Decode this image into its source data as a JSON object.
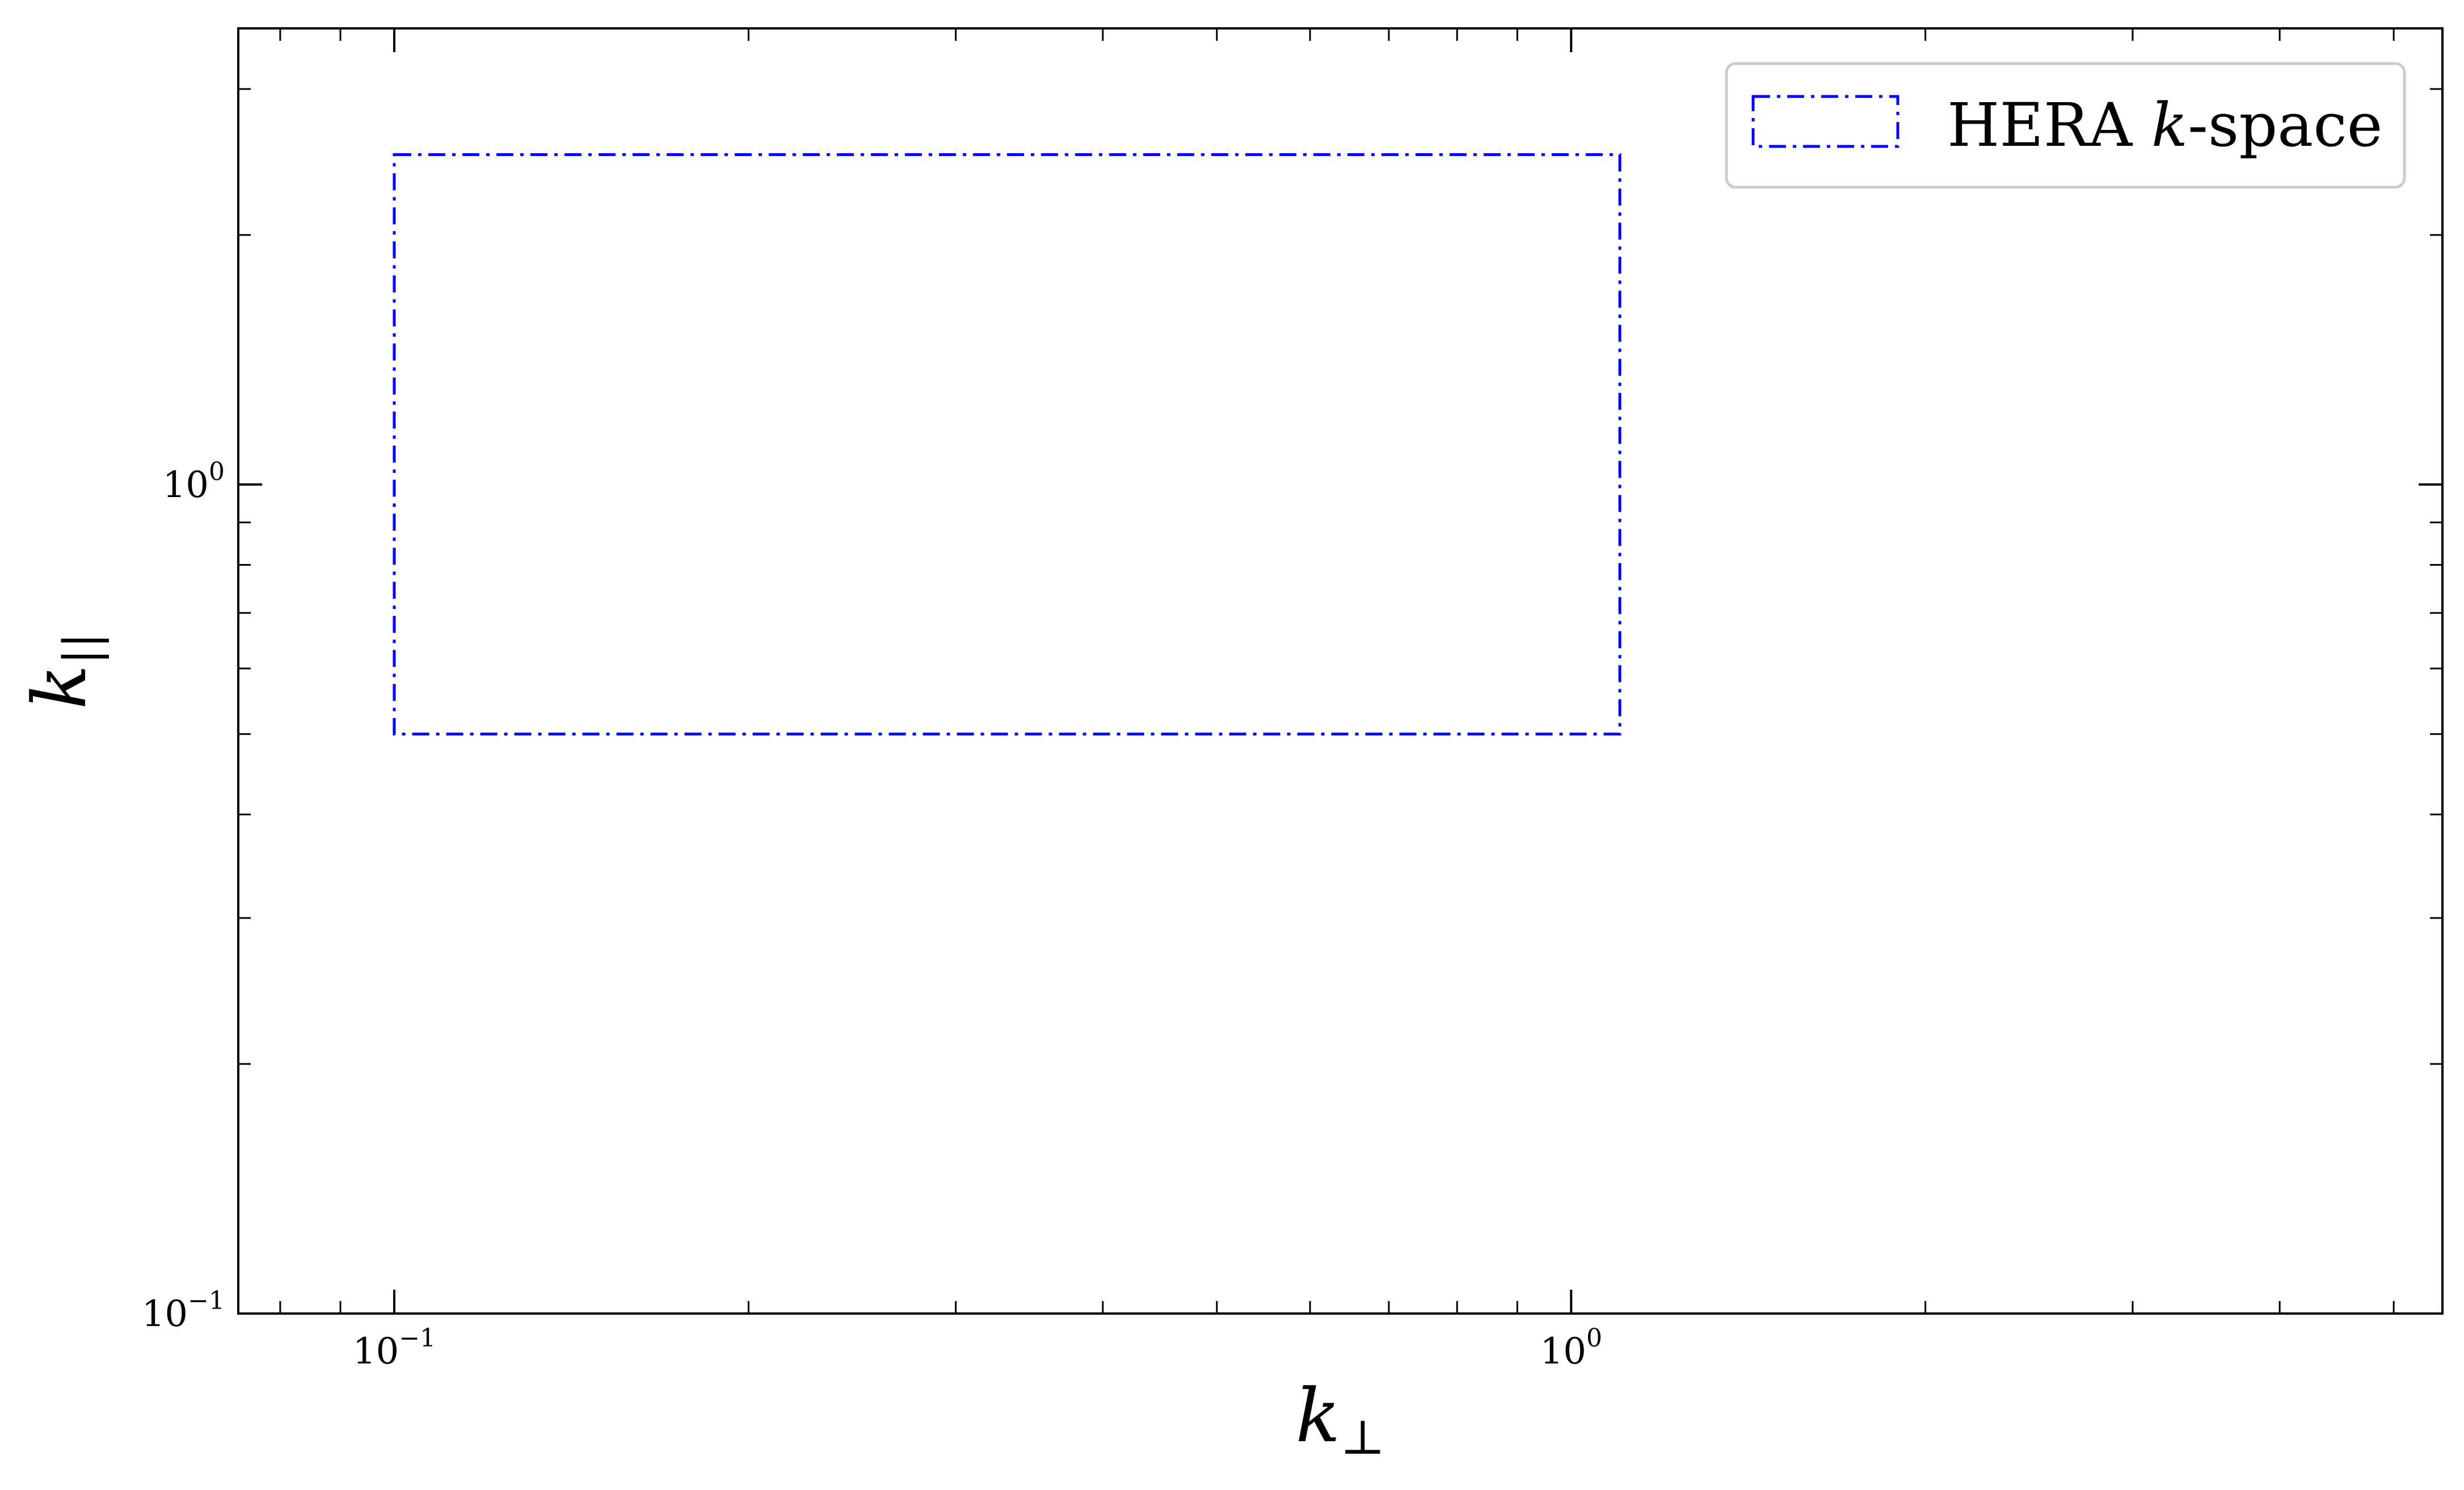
{
  "chart_data": {
    "type": "area",
    "x_scale": "log",
    "y_scale": "log",
    "xlabel": "k",
    "xlabel_sub": "⊥",
    "ylabel": "k",
    "ylabel_sub": "||",
    "xlim": [
      0.0737,
      5.5
    ],
    "ylim": [
      0.1,
      3.55
    ],
    "x_ticks": [
      {
        "value": 0.1,
        "base": "10",
        "exp": "−1"
      },
      {
        "value": 1.0,
        "base": "10",
        "exp": "0"
      }
    ],
    "y_ticks": [
      {
        "value": 0.1,
        "base": "10",
        "exp": "−1"
      },
      {
        "value": 1.0,
        "base": "10",
        "exp": "0"
      }
    ],
    "grid": false,
    "tick_direction": "in",
    "ticks_all_sides": true,
    "legend": {
      "location": "top-right",
      "entries": [
        {
          "label_prefix": "HERA ",
          "label_italic": "k",
          "label_suffix": "-space",
          "color": "#0000ff",
          "linestyle": "dashdot"
        }
      ]
    },
    "series": [
      {
        "name": "HERA k-space",
        "shape": "rectangle",
        "x_range": [
          0.1,
          1.1
        ],
        "y_range": [
          0.5,
          2.5
        ],
        "color": "#0000ff",
        "linestyle": "dashdot",
        "fill": "none"
      }
    ]
  }
}
